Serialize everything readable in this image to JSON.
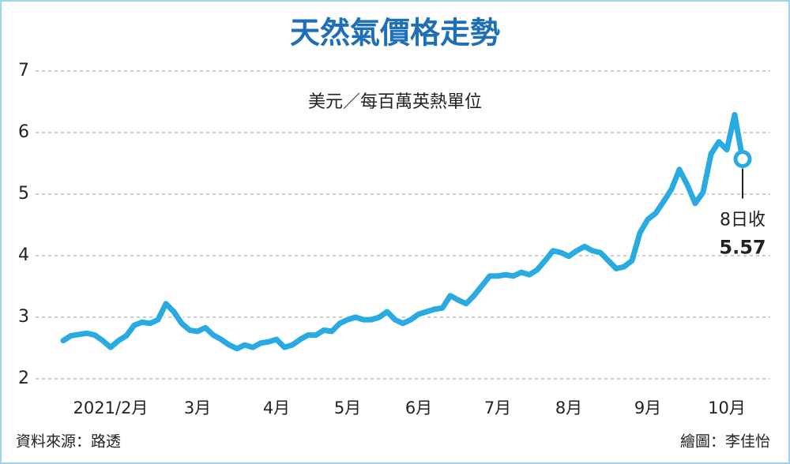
{
  "chart_data": {
    "type": "line",
    "title": "天然氣價格走勢",
    "subtitle": "美元／每百萬英熱單位",
    "categories": [
      null,
      null,
      null,
      null,
      null,
      null,
      "2021/2月",
      null,
      null,
      null,
      null,
      null,
      null,
      null,
      null,
      null,
      null,
      "3月",
      null,
      null,
      null,
      null,
      null,
      null,
      null,
      null,
      null,
      "4月",
      null,
      null,
      null,
      null,
      null,
      null,
      null,
      null,
      "5月",
      null,
      null,
      null,
      null,
      null,
      null,
      null,
      null,
      "6月",
      null,
      null,
      null,
      null,
      null,
      null,
      null,
      null,
      null,
      "7月",
      null,
      null,
      null,
      null,
      null,
      null,
      null,
      null,
      "8月",
      null,
      null,
      null,
      null,
      null,
      null,
      null,
      null,
      null,
      "9月",
      null,
      null,
      null,
      null,
      null,
      null,
      null,
      null,
      null,
      "10月",
      null,
      null
    ],
    "values": [
      2.62,
      2.7,
      2.72,
      2.74,
      2.71,
      2.62,
      2.51,
      2.62,
      2.7,
      2.87,
      2.92,
      2.9,
      2.96,
      3.22,
      3.09,
      2.9,
      2.79,
      2.77,
      2.83,
      2.71,
      2.64,
      2.55,
      2.49,
      2.55,
      2.51,
      2.58,
      2.6,
      2.64,
      2.51,
      2.55,
      2.64,
      2.71,
      2.71,
      2.79,
      2.77,
      2.9,
      2.96,
      3.0,
      2.96,
      2.96,
      3.0,
      3.09,
      2.96,
      2.9,
      2.96,
      3.05,
      3.09,
      3.13,
      3.15,
      3.35,
      3.28,
      3.22,
      3.35,
      3.51,
      3.67,
      3.67,
      3.69,
      3.67,
      3.73,
      3.69,
      3.77,
      3.92,
      4.08,
      4.05,
      3.99,
      4.08,
      4.15,
      4.08,
      4.05,
      3.92,
      3.79,
      3.82,
      3.92,
      4.37,
      4.59,
      4.69,
      4.88,
      5.08,
      5.4,
      5.15,
      4.85,
      5.03,
      5.65,
      5.85,
      5.72,
      6.29,
      5.57
    ],
    "color": "#29abe2",
    "ylim": [
      2,
      7
    ],
    "yticks": [
      2,
      3,
      4,
      5,
      6,
      7
    ],
    "grid": true,
    "annotation": "8日收",
    "source": "資料來源：路透",
    "credit": "繪圖：李佳怡"
  }
}
